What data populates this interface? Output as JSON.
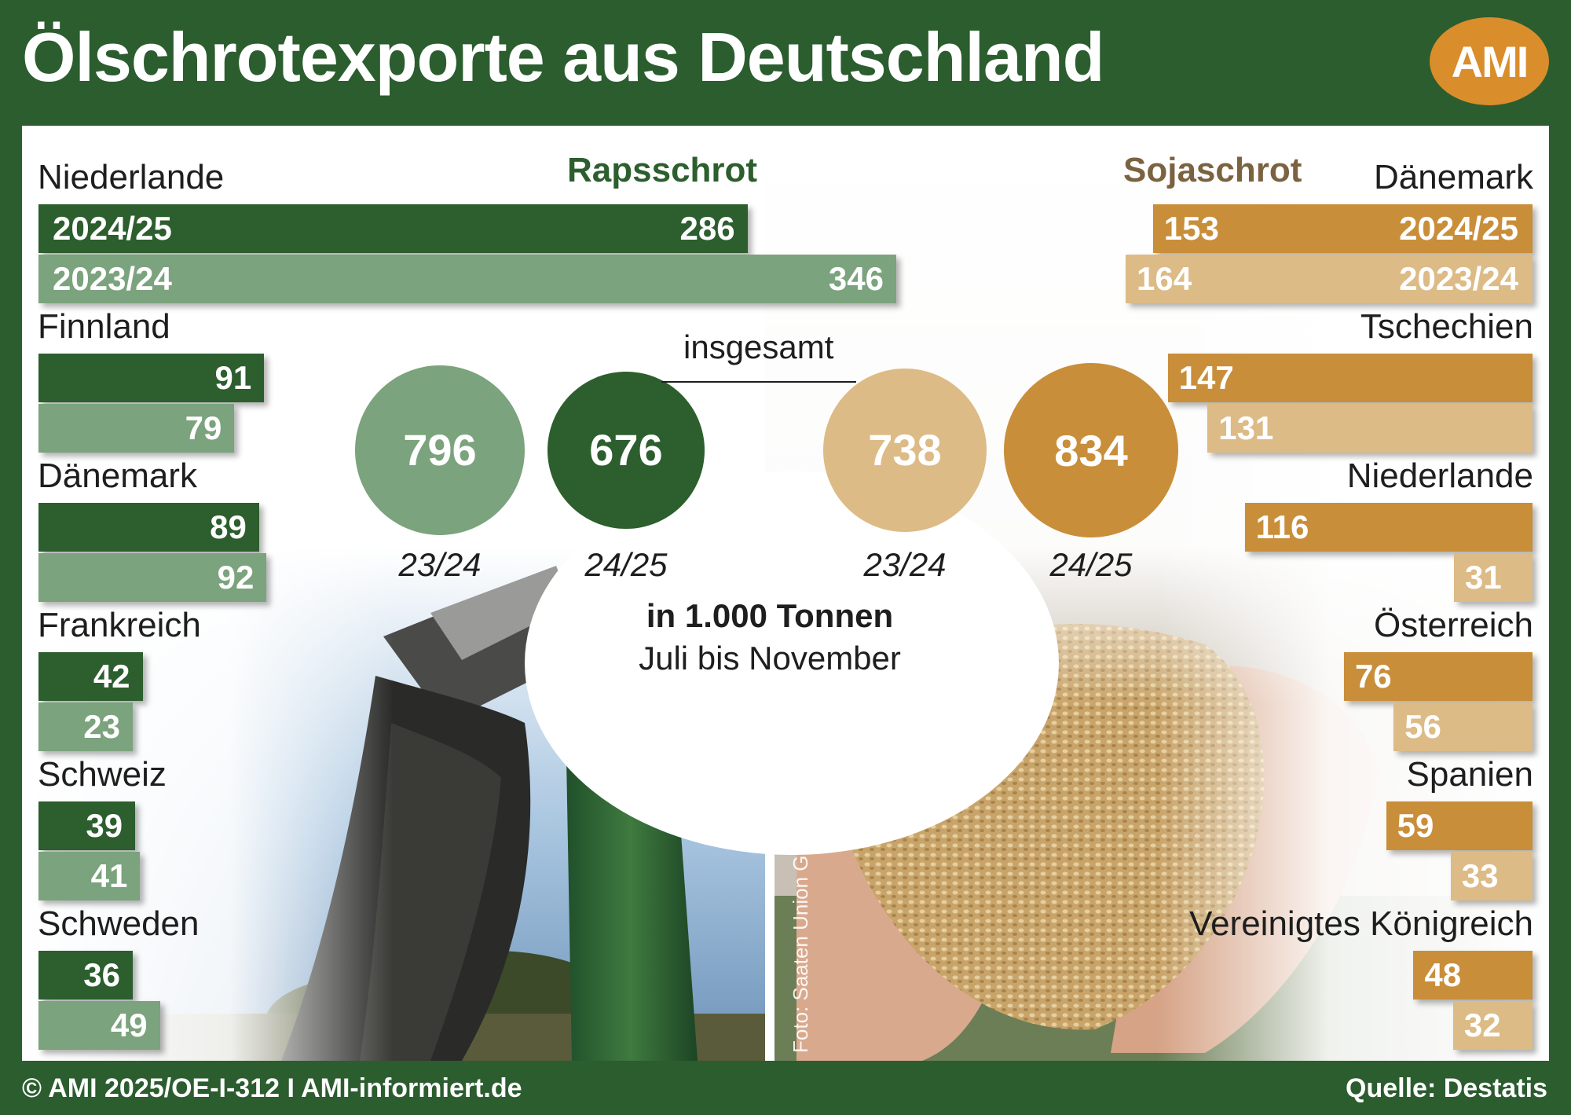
{
  "header": {
    "title": "Ölschrotexporte aus Deutschland",
    "logo_text": "AMI"
  },
  "footer": {
    "copyright": "© AMI 2025/OE-I-312 I AMI-informiert.de",
    "source": "Quelle: Destatis"
  },
  "photo_credit": "Foto: Saaten Union GmbH",
  "totals": {
    "label": "insgesamt",
    "unit": "in 1.000 Tonnen",
    "period": "Juli bis November"
  },
  "colors": {
    "raps_current": "#2c5e2e",
    "raps_previous": "#7ba37d",
    "soja_current": "#c98e3a",
    "soja_previous": "#ddbb86",
    "panel_bg": "#2b5d2f"
  },
  "chart_data": [
    {
      "type": "bar",
      "orientation": "horizontal",
      "title": "Rapsschrot",
      "categories": [
        "Niederlande",
        "Finnland",
        "Dänemark",
        "Frankreich",
        "Schweiz",
        "Schweden"
      ],
      "series": [
        {
          "name": "2024/25",
          "values": [
            286,
            91,
            89,
            42,
            39,
            36
          ]
        },
        {
          "name": "2023/24",
          "values": [
            346,
            79,
            92,
            23,
            41,
            49
          ]
        }
      ],
      "totals": [
        {
          "label": "23/24",
          "value": 796
        },
        {
          "label": "24/25",
          "value": 676
        }
      ],
      "xlim": [
        0,
        346
      ]
    },
    {
      "type": "bar",
      "orientation": "horizontal",
      "title": "Sojaschrot",
      "categories": [
        "Dänemark",
        "Tschechien",
        "Niederlande",
        "Österreich",
        "Spanien",
        "Vereinigtes Königreich"
      ],
      "series": [
        {
          "name": "2024/25",
          "values": [
            153,
            147,
            116,
            76,
            59,
            48
          ]
        },
        {
          "name": "2023/24",
          "values": [
            164,
            131,
            31,
            56,
            33,
            32
          ]
        }
      ],
      "totals": [
        {
          "label": "23/24",
          "value": 738
        },
        {
          "label": "24/25",
          "value": 834
        }
      ],
      "xlim": [
        0,
        164
      ]
    }
  ]
}
